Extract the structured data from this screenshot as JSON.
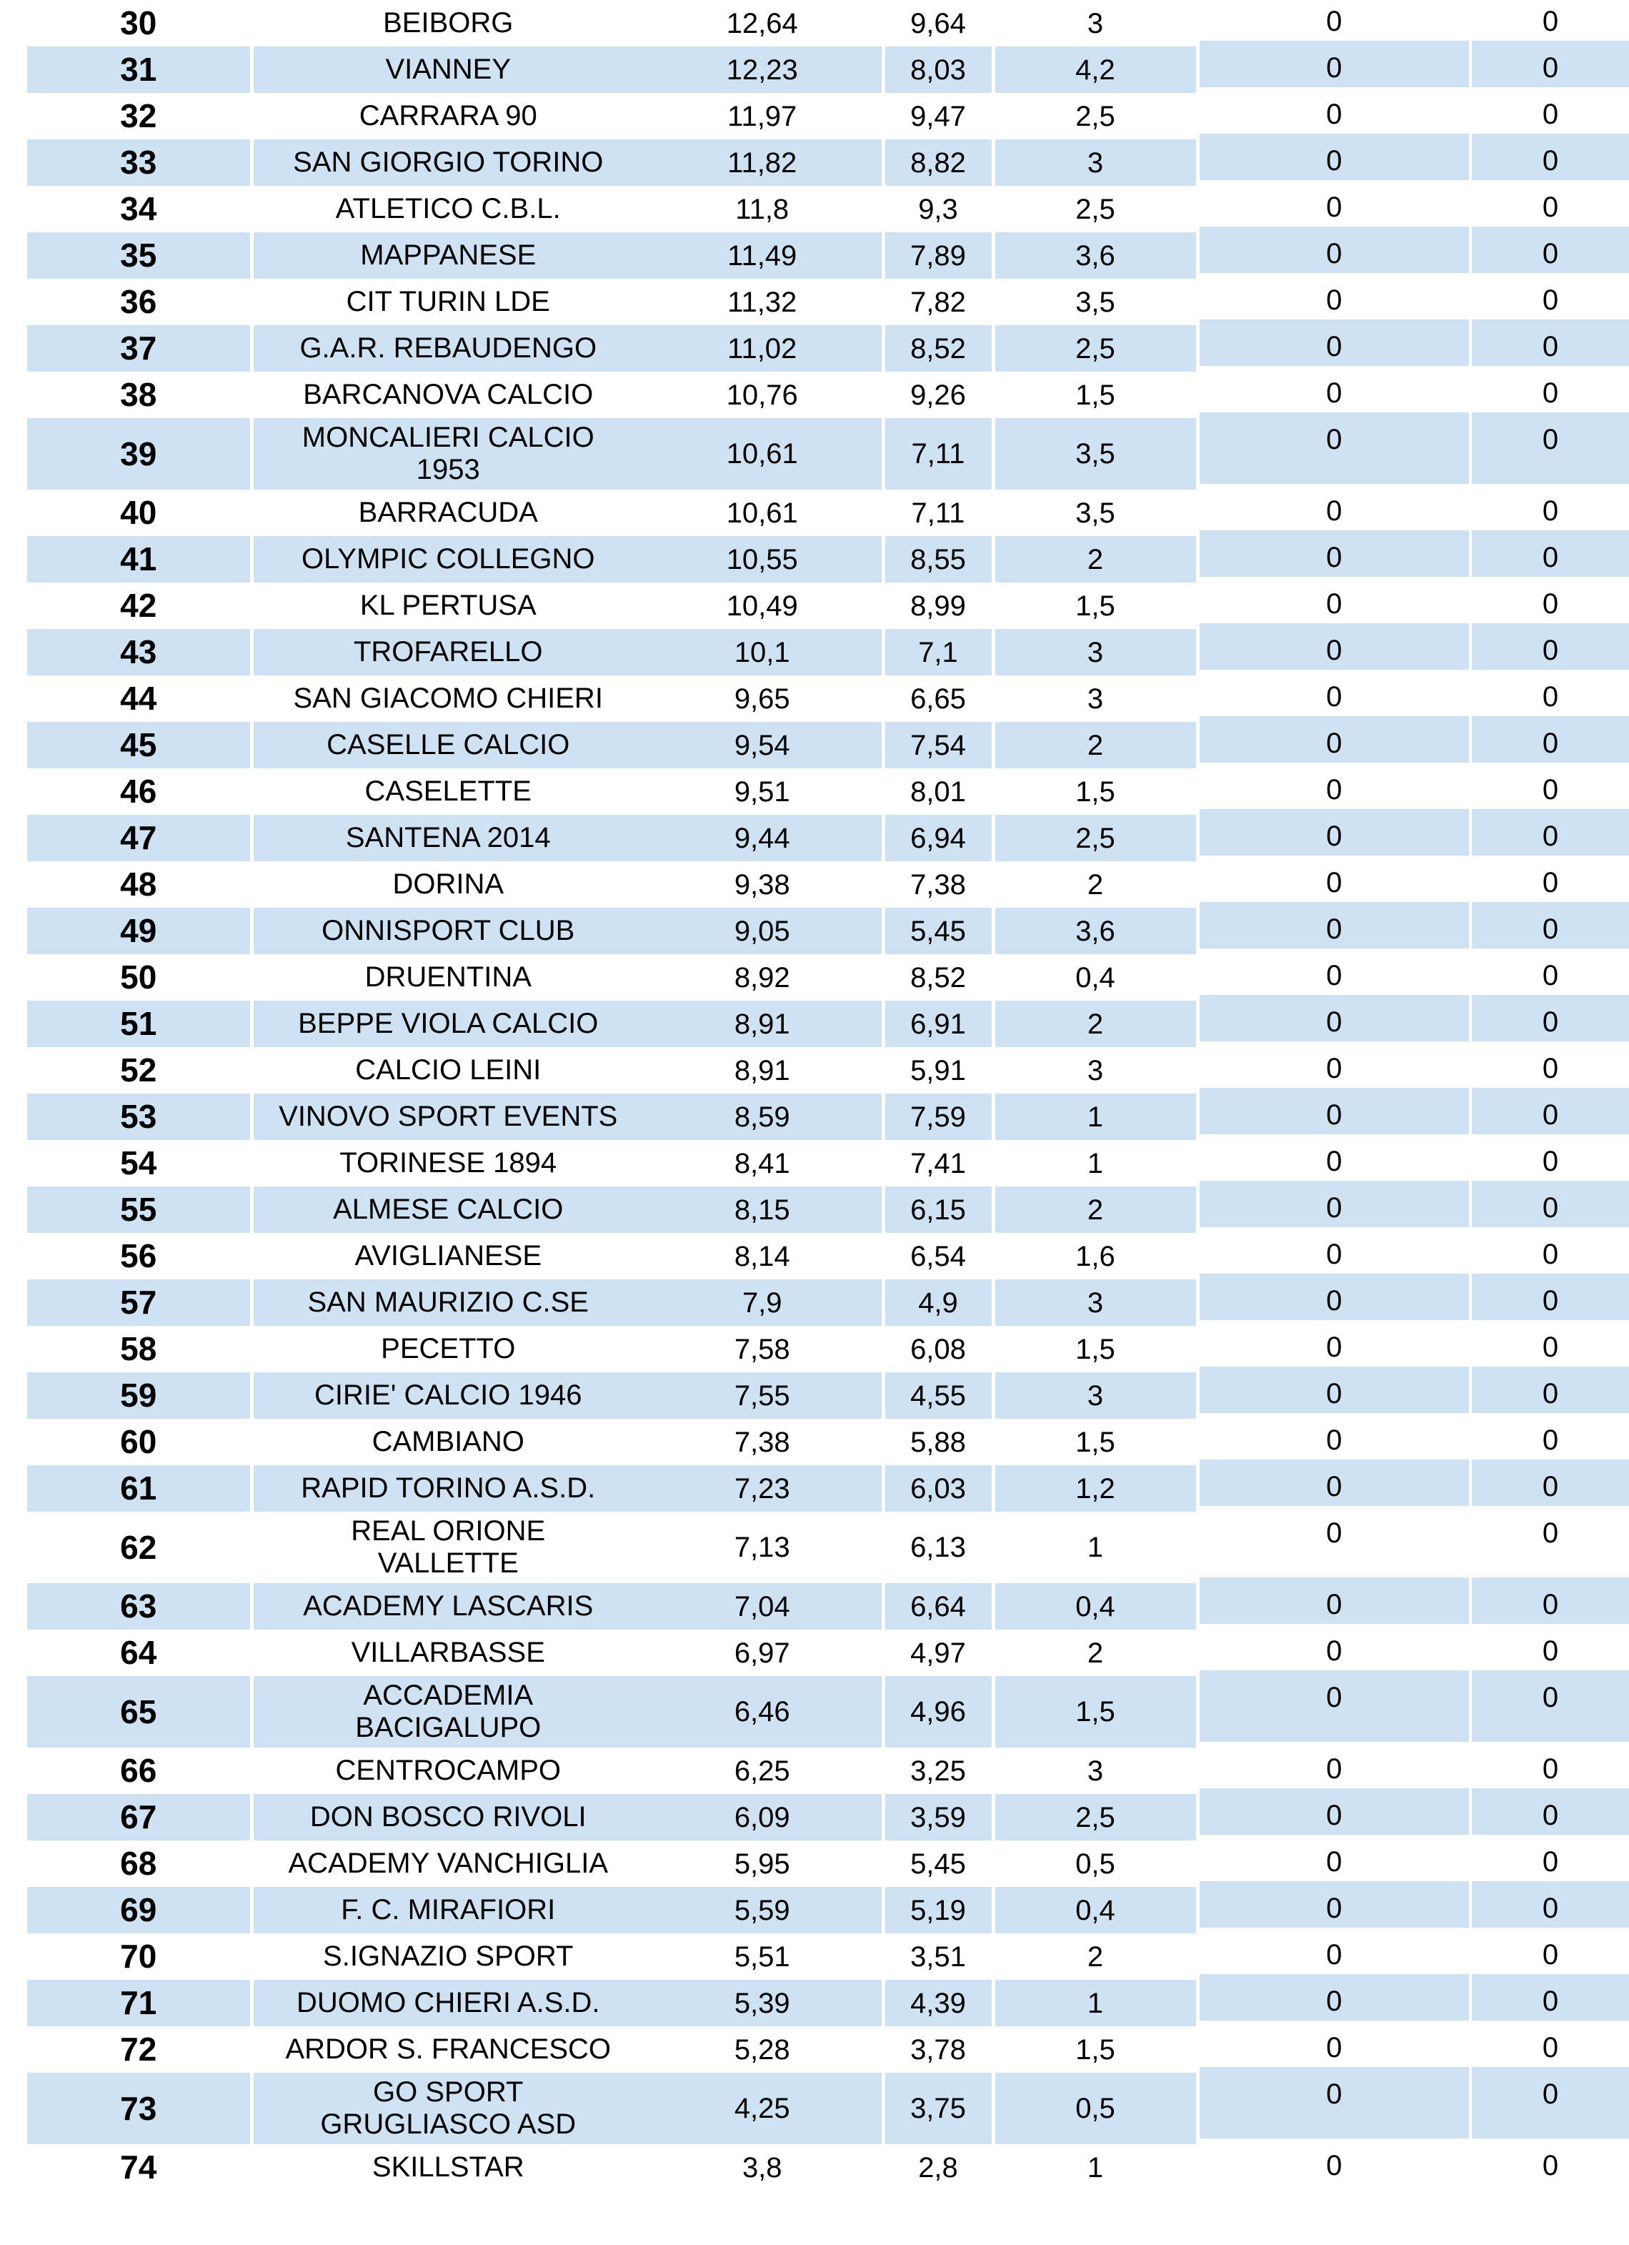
{
  "page": {
    "background": "#ffffff"
  },
  "table": {
    "stripe_blue": "#cfe2f3",
    "stripe_white": "#ffffff",
    "text_color": "#000000",
    "rows": [
      {
        "rank": "30",
        "team": "BEIBORG",
        "v1": "12,64",
        "v2": "9,64",
        "v3": "3",
        "v4": "0",
        "v5": "0"
      },
      {
        "rank": "31",
        "team": "VIANNEY",
        "v1": "12,23",
        "v2": "8,03",
        "v3": "4,2",
        "v4": "0",
        "v5": "0"
      },
      {
        "rank": "32",
        "team": "CARRARA 90",
        "v1": "11,97",
        "v2": "9,47",
        "v3": "2,5",
        "v4": "0",
        "v5": "0"
      },
      {
        "rank": "33",
        "team": "SAN GIORGIO TORINO",
        "v1": "11,82",
        "v2": "8,82",
        "v3": "3",
        "v4": "0",
        "v5": "0"
      },
      {
        "rank": "34",
        "team": "ATLETICO C.B.L.",
        "v1": "11,8",
        "v2": "9,3",
        "v3": "2,5",
        "v4": "0",
        "v5": "0"
      },
      {
        "rank": "35",
        "team": "MAPPANESE",
        "v1": "11,49",
        "v2": "7,89",
        "v3": "3,6",
        "v4": "0",
        "v5": "0"
      },
      {
        "rank": "36",
        "team": "CIT TURIN LDE",
        "v1": "11,32",
        "v2": "7,82",
        "v3": "3,5",
        "v4": "0",
        "v5": "0"
      },
      {
        "rank": "37",
        "team": "G.A.R. REBAUDENGO",
        "v1": "11,02",
        "v2": "8,52",
        "v3": "2,5",
        "v4": "0",
        "v5": "0"
      },
      {
        "rank": "38",
        "team": "BARCANOVA CALCIO",
        "v1": "10,76",
        "v2": "9,26",
        "v3": "1,5",
        "v4": "0",
        "v5": "0"
      },
      {
        "rank": "39",
        "team": "MONCALIERI CALCIO\n1953",
        "v1": "10,61",
        "v2": "7,11",
        "v3": "3,5",
        "v4": "0",
        "v5": "0"
      },
      {
        "rank": "40",
        "team": "BARRACUDA",
        "v1": "10,61",
        "v2": "7,11",
        "v3": "3,5",
        "v4": "0",
        "v5": "0"
      },
      {
        "rank": "41",
        "team": "OLYMPIC COLLEGNO",
        "v1": "10,55",
        "v2": "8,55",
        "v3": "2",
        "v4": "0",
        "v5": "0"
      },
      {
        "rank": "42",
        "team": "KL PERTUSA",
        "v1": "10,49",
        "v2": "8,99",
        "v3": "1,5",
        "v4": "0",
        "v5": "0"
      },
      {
        "rank": "43",
        "team": "TROFARELLO",
        "v1": "10,1",
        "v2": "7,1",
        "v3": "3",
        "v4": "0",
        "v5": "0"
      },
      {
        "rank": "44",
        "team": "SAN GIACOMO CHIERI",
        "v1": "9,65",
        "v2": "6,65",
        "v3": "3",
        "v4": "0",
        "v5": "0"
      },
      {
        "rank": "45",
        "team": "CASELLE CALCIO",
        "v1": "9,54",
        "v2": "7,54",
        "v3": "2",
        "v4": "0",
        "v5": "0"
      },
      {
        "rank": "46",
        "team": "CASELETTE",
        "v1": "9,51",
        "v2": "8,01",
        "v3": "1,5",
        "v4": "0",
        "v5": "0"
      },
      {
        "rank": "47",
        "team": "SANTENA 2014",
        "v1": "9,44",
        "v2": "6,94",
        "v3": "2,5",
        "v4": "0",
        "v5": "0"
      },
      {
        "rank": "48",
        "team": "DORINA",
        "v1": "9,38",
        "v2": "7,38",
        "v3": "2",
        "v4": "0",
        "v5": "0"
      },
      {
        "rank": "49",
        "team": "ONNISPORT CLUB",
        "v1": "9,05",
        "v2": "5,45",
        "v3": "3,6",
        "v4": "0",
        "v5": "0"
      },
      {
        "rank": "50",
        "team": "DRUENTINA",
        "v1": "8,92",
        "v2": "8,52",
        "v3": "0,4",
        "v4": "0",
        "v5": "0"
      },
      {
        "rank": "51",
        "team": "BEPPE VIOLA CALCIO",
        "v1": "8,91",
        "v2": "6,91",
        "v3": "2",
        "v4": "0",
        "v5": "0"
      },
      {
        "rank": "52",
        "team": "CALCIO LEINI",
        "v1": "8,91",
        "v2": "5,91",
        "v3": "3",
        "v4": "0",
        "v5": "0"
      },
      {
        "rank": "53",
        "team": "VINOVO SPORT EVENTS",
        "v1": "8,59",
        "v2": "7,59",
        "v3": "1",
        "v4": "0",
        "v5": "0"
      },
      {
        "rank": "54",
        "team": "TORINESE 1894",
        "v1": "8,41",
        "v2": "7,41",
        "v3": "1",
        "v4": "0",
        "v5": "0"
      },
      {
        "rank": "55",
        "team": "ALMESE CALCIO",
        "v1": "8,15",
        "v2": "6,15",
        "v3": "2",
        "v4": "0",
        "v5": "0"
      },
      {
        "rank": "56",
        "team": "AVIGLIANESE",
        "v1": "8,14",
        "v2": "6,54",
        "v3": "1,6",
        "v4": "0",
        "v5": "0"
      },
      {
        "rank": "57",
        "team": "SAN MAURIZIO C.SE",
        "v1": "7,9",
        "v2": "4,9",
        "v3": "3",
        "v4": "0",
        "v5": "0"
      },
      {
        "rank": "58",
        "team": "PECETTO",
        "v1": "7,58",
        "v2": "6,08",
        "v3": "1,5",
        "v4": "0",
        "v5": "0"
      },
      {
        "rank": "59",
        "team": "CIRIE' CALCIO 1946",
        "v1": "7,55",
        "v2": "4,55",
        "v3": "3",
        "v4": "0",
        "v5": "0"
      },
      {
        "rank": "60",
        "team": "CAMBIANO",
        "v1": "7,38",
        "v2": "5,88",
        "v3": "1,5",
        "v4": "0",
        "v5": "0"
      },
      {
        "rank": "61",
        "team": "RAPID TORINO A.S.D.",
        "v1": "7,23",
        "v2": "6,03",
        "v3": "1,2",
        "v4": "0",
        "v5": "0"
      },
      {
        "rank": "62",
        "team": "REAL ORIONE\nVALLETTE",
        "v1": "7,13",
        "v2": "6,13",
        "v3": "1",
        "v4": "0",
        "v5": "0"
      },
      {
        "rank": "63",
        "team": "ACADEMY LASCARIS",
        "v1": "7,04",
        "v2": "6,64",
        "v3": "0,4",
        "v4": "0",
        "v5": "0"
      },
      {
        "rank": "64",
        "team": "VILLARBASSE",
        "v1": "6,97",
        "v2": "4,97",
        "v3": "2",
        "v4": "0",
        "v5": "0"
      },
      {
        "rank": "65",
        "team": "ACCADEMIA\nBACIGALUPO",
        "v1": "6,46",
        "v2": "4,96",
        "v3": "1,5",
        "v4": "0",
        "v5": "0"
      },
      {
        "rank": "66",
        "team": "CENTROCAMPO",
        "v1": "6,25",
        "v2": "3,25",
        "v3": "3",
        "v4": "0",
        "v5": "0"
      },
      {
        "rank": "67",
        "team": "DON BOSCO RIVOLI",
        "v1": "6,09",
        "v2": "3,59",
        "v3": "2,5",
        "v4": "0",
        "v5": "0"
      },
      {
        "rank": "68",
        "team": "ACADEMY VANCHIGLIA",
        "v1": "5,95",
        "v2": "5,45",
        "v3": "0,5",
        "v4": "0",
        "v5": "0"
      },
      {
        "rank": "69",
        "team": "F. C. MIRAFIORI",
        "v1": "5,59",
        "v2": "5,19",
        "v3": "0,4",
        "v4": "0",
        "v5": "0"
      },
      {
        "rank": "70",
        "team": "S.IGNAZIO SPORT",
        "v1": "5,51",
        "v2": "3,51",
        "v3": "2",
        "v4": "0",
        "v5": "0"
      },
      {
        "rank": "71",
        "team": "DUOMO CHIERI A.S.D.",
        "v1": "5,39",
        "v2": "4,39",
        "v3": "1",
        "v4": "0",
        "v5": "0"
      },
      {
        "rank": "72",
        "team": "ARDOR S. FRANCESCO",
        "v1": "5,28",
        "v2": "3,78",
        "v3": "1,5",
        "v4": "0",
        "v5": "0"
      },
      {
        "rank": "73",
        "team": "GO SPORT\nGRUGLIASCO ASD",
        "v1": "4,25",
        "v2": "3,75",
        "v3": "0,5",
        "v4": "0",
        "v5": "0"
      },
      {
        "rank": "74",
        "team": "SKILLSTAR",
        "v1": "3,8",
        "v2": "2,8",
        "v3": "1",
        "v4": "0",
        "v5": "0"
      }
    ]
  }
}
